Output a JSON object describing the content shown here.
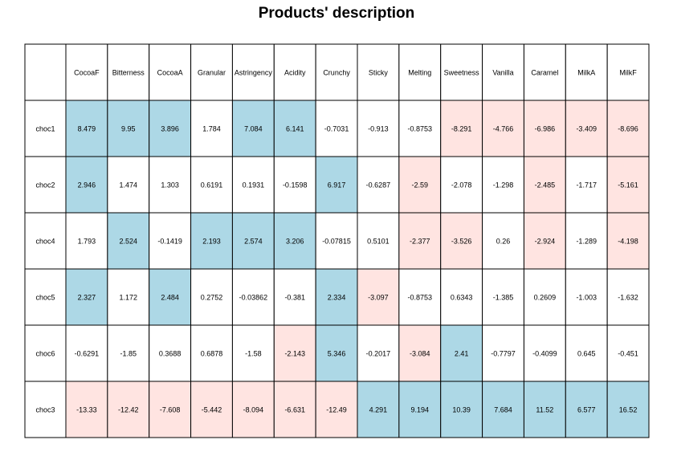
{
  "title": "Products' description",
  "chart_data": {
    "type": "table",
    "title": "Products' description",
    "columns": [
      "CocoaF",
      "Bitterness",
      "CocoaA",
      "Granular",
      "Astringency",
      "Acidity",
      "Crunchy",
      "Sticky",
      "Melting",
      "Sweetness",
      "Vanilla",
      "Caramel",
      "MilkA",
      "MilkF"
    ],
    "rows": [
      {
        "name": "choc1",
        "values": [
          "8.479",
          "9.95",
          "3.896",
          "1.784",
          "7.084",
          "6.141",
          "-0.7031",
          "-0.913",
          "-0.8753",
          "-8.291",
          "-4.766",
          "-6.986",
          "-3.409",
          "-8.696"
        ],
        "highlight": [
          "pos",
          "pos",
          "pos",
          "none",
          "pos",
          "pos",
          "none",
          "none",
          "none",
          "neg",
          "neg",
          "neg",
          "neg",
          "neg"
        ]
      },
      {
        "name": "choc2",
        "values": [
          "2.946",
          "1.474",
          "1.303",
          "0.6191",
          "0.1931",
          "-0.1598",
          "6.917",
          "-0.6287",
          "-2.59",
          "-2.078",
          "-1.298",
          "-2.485",
          "-1.717",
          "-5.161"
        ],
        "highlight": [
          "pos",
          "none",
          "none",
          "none",
          "none",
          "none",
          "pos",
          "none",
          "neg",
          "none",
          "none",
          "neg",
          "none",
          "neg"
        ]
      },
      {
        "name": "choc4",
        "values": [
          "1.793",
          "2.524",
          "-0.1419",
          "2.193",
          "2.574",
          "3.206",
          "-0.07815",
          "0.5101",
          "-2.377",
          "-3.526",
          "0.26",
          "-2.924",
          "-1.289",
          "-4.198"
        ],
        "highlight": [
          "none",
          "pos",
          "none",
          "pos",
          "pos",
          "pos",
          "none",
          "none",
          "neg",
          "neg",
          "none",
          "neg",
          "none",
          "neg"
        ]
      },
      {
        "name": "choc5",
        "values": [
          "2.327",
          "1.172",
          "2.484",
          "0.2752",
          "-0.03862",
          "-0.381",
          "2.334",
          "-3.097",
          "-0.8753",
          "0.6343",
          "-1.385",
          "0.2609",
          "-1.003",
          "-1.632"
        ],
        "highlight": [
          "pos",
          "none",
          "pos",
          "none",
          "none",
          "none",
          "pos",
          "neg",
          "none",
          "none",
          "none",
          "none",
          "none",
          "none"
        ]
      },
      {
        "name": "choc6",
        "values": [
          "-0.6291",
          "-1.85",
          "0.3688",
          "0.6878",
          "-1.58",
          "-2.143",
          "5.346",
          "-0.2017",
          "-3.084",
          "2.41",
          "-0.7797",
          "-0.4099",
          "0.645",
          "-0.451"
        ],
        "highlight": [
          "none",
          "none",
          "none",
          "none",
          "none",
          "neg",
          "pos",
          "none",
          "neg",
          "pos",
          "none",
          "none",
          "none",
          "none"
        ]
      },
      {
        "name": "choc3",
        "values": [
          "-13.33",
          "-12.42",
          "-7.608",
          "-5.442",
          "-8.094",
          "-6.631",
          "-12.49",
          "4.291",
          "9.194",
          "10.39",
          "7.684",
          "11.52",
          "6.577",
          "16.52"
        ],
        "highlight": [
          "neg",
          "neg",
          "neg",
          "neg",
          "neg",
          "neg",
          "neg",
          "pos",
          "pos",
          "pos",
          "pos",
          "pos",
          "pos",
          "pos"
        ]
      }
    ],
    "colors": {
      "pos": "#add8e6",
      "neg": "#ffe4e1",
      "none": "#ffffff",
      "border": "#000000"
    }
  }
}
